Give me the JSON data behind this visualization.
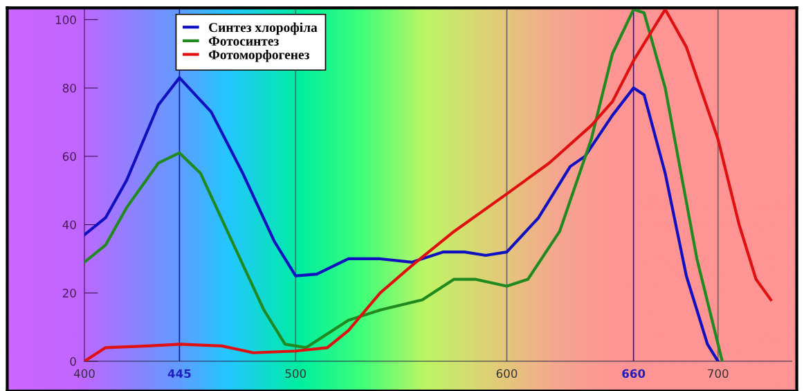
{
  "chart_data": {
    "type": "line",
    "xlim": [
      400,
      735
    ],
    "ylim": [
      0,
      103
    ],
    "xticks": [
      400,
      445,
      500,
      600,
      660,
      700
    ],
    "yticks": [
      0,
      20,
      40,
      60,
      80,
      100
    ],
    "grid": false,
    "legend": "top left",
    "marker": "none",
    "line_style": "solid",
    "ref_lines": [
      {
        "axis": "x",
        "value": 445,
        "color": "#1a1a9a"
      },
      {
        "axis": "x",
        "value": 500,
        "color": "#666666"
      },
      {
        "axis": "x",
        "value": 600,
        "color": "#666666"
      },
      {
        "axis": "x",
        "value": 660,
        "color": "#1a1a9a"
      },
      {
        "axis": "x",
        "value": 700,
        "color": "#666666"
      }
    ],
    "series": [
      {
        "name": "Синтез хлорофіла",
        "color": "#1010c0",
        "x": [
          400,
          410,
          420,
          435,
          445,
          460,
          475,
          490,
          500,
          510,
          525,
          540,
          555,
          570,
          580,
          590,
          600,
          615,
          630,
          637,
          650,
          660,
          665,
          675,
          685,
          695,
          700
        ],
        "values": [
          37,
          42,
          53,
          75,
          83,
          73,
          55,
          35,
          25,
          25.5,
          30,
          30,
          29,
          32,
          32,
          31,
          32,
          42,
          57,
          60,
          72,
          80,
          78,
          55,
          25,
          5,
          0
        ]
      },
      {
        "name": "Фотосинтез",
        "color": "#208a20",
        "x": [
          400,
          410,
          420,
          435,
          445,
          455,
          470,
          485,
          495,
          505,
          515,
          525,
          540,
          560,
          575,
          585,
          600,
          610,
          625,
          640,
          650,
          660,
          665,
          675,
          690,
          702
        ],
        "values": [
          29,
          34,
          45,
          58,
          61,
          55,
          35,
          15,
          5,
          4,
          8,
          12,
          15,
          18,
          24,
          24,
          22,
          24,
          38,
          65,
          90,
          103,
          102,
          80,
          30,
          0
        ]
      },
      {
        "name": "Фотоморфогенез",
        "color": "#e01010",
        "x": [
          400,
          410,
          430,
          445,
          465,
          480,
          500,
          515,
          525,
          540,
          555,
          575,
          600,
          620,
          640,
          650,
          660,
          670,
          675,
          685,
          700,
          710,
          718,
          725
        ],
        "values": [
          0,
          4,
          4.5,
          5,
          4.5,
          2.5,
          3,
          4,
          9,
          20,
          28,
          38,
          49,
          58,
          69,
          76,
          88,
          98,
          103,
          92,
          65,
          40,
          24,
          18
        ]
      }
    ]
  }
}
